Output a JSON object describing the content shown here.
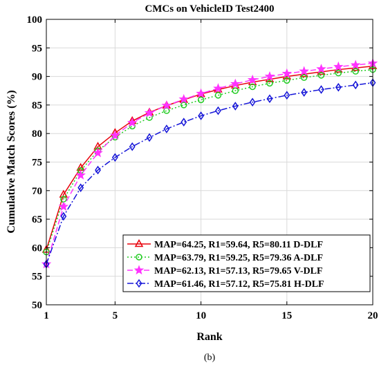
{
  "chart_data": {
    "type": "line",
    "title": "CMCs on VehicleID Test2400",
    "xlabel": "Rank",
    "ylabel": "Cumulative Match Scores (%)",
    "xlim": [
      1,
      20
    ],
    "ylim": [
      50,
      100
    ],
    "xticks": [
      1,
      5,
      10,
      15,
      20
    ],
    "yticks": [
      50,
      55,
      60,
      65,
      70,
      75,
      80,
      85,
      90,
      95,
      100
    ],
    "grid": true,
    "legend_position": "bottom-right",
    "x": [
      1,
      2,
      3,
      4,
      5,
      6,
      7,
      8,
      9,
      10,
      11,
      12,
      13,
      14,
      15,
      16,
      17,
      18,
      19,
      20
    ],
    "series": [
      {
        "name": "MAP=64.25, R1=59.64, R5=80.11 D-DLF",
        "color": "#e8000b",
        "marker": "triangle",
        "dash": "solid",
        "values": [
          59.64,
          69.3,
          74.0,
          77.7,
          80.11,
          82.2,
          83.7,
          84.9,
          85.9,
          86.9,
          87.7,
          88.4,
          89.0,
          89.5,
          90.0,
          90.4,
          90.8,
          91.2,
          91.5,
          91.8
        ]
      },
      {
        "name": "MAP=63.79, R1=59.25, R5=79.36 A-DLF",
        "color": "#22cc22",
        "marker": "circle",
        "dash": "dot",
        "values": [
          59.25,
          68.5,
          73.5,
          77.0,
          79.36,
          81.3,
          82.8,
          84.0,
          85.0,
          85.9,
          86.7,
          87.5,
          88.2,
          88.8,
          89.3,
          89.8,
          90.2,
          90.6,
          90.9,
          91.2
        ]
      },
      {
        "name": "MAP=62.13, R1=57.13, R5=79.65 V-DLF",
        "color": "#ff33ff",
        "marker": "star",
        "dash": "dash",
        "values": [
          57.13,
          67.2,
          72.7,
          76.6,
          79.65,
          81.9,
          83.6,
          84.9,
          86.0,
          87.0,
          87.9,
          88.7,
          89.4,
          90.0,
          90.5,
          90.9,
          91.3,
          91.7,
          92.0,
          92.3
        ]
      },
      {
        "name": "MAP=61.46, R1=57.12, R5=75.81 H-DLF",
        "color": "#1414d8",
        "marker": "diamond",
        "dash": "dashdot",
        "values": [
          57.12,
          65.5,
          70.5,
          73.6,
          75.81,
          77.7,
          79.3,
          80.8,
          82.0,
          83.1,
          84.0,
          84.8,
          85.5,
          86.1,
          86.7,
          87.2,
          87.7,
          88.1,
          88.5,
          88.9
        ]
      }
    ]
  },
  "caption": "(b)"
}
